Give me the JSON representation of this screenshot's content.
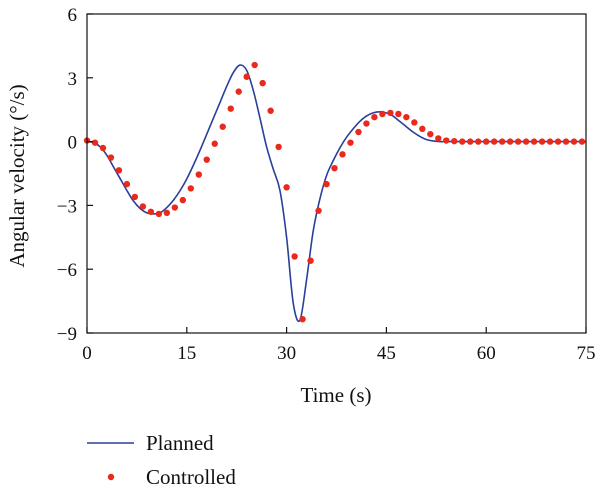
{
  "chart_data": {
    "type": "line",
    "xlabel": "Time (s)",
    "ylabel": "Angular velocity (°/s)",
    "xlim": [
      0,
      75
    ],
    "ylim": [
      -9,
      6
    ],
    "xticks": [
      "0",
      "15",
      "30",
      "45",
      "60",
      "75"
    ],
    "yticks": [
      "6",
      "3",
      "0",
      "−3",
      "−6",
      "−9"
    ],
    "grid": false,
    "legend_position": "bottom-left, below plot",
    "series": [
      {
        "name": "Planned",
        "style": "line",
        "color": "#2a3f9a",
        "x": [
          0,
          1,
          2,
          3,
          4,
          5,
          6,
          7,
          8,
          9,
          10,
          11,
          12,
          13,
          14,
          15,
          16,
          17,
          18,
          19,
          20,
          21,
          22,
          23,
          24,
          25,
          26,
          27,
          28,
          29,
          30,
          31,
          32,
          33,
          34,
          35,
          36,
          37,
          38,
          39,
          40,
          41,
          42,
          43,
          44,
          45,
          46,
          47,
          48,
          49,
          50,
          51,
          52,
          53,
          54,
          55,
          56,
          57,
          58,
          59,
          60,
          65,
          70,
          75
        ],
        "y": [
          0,
          -0.05,
          -0.25,
          -0.65,
          -1.2,
          -1.75,
          -2.3,
          -2.8,
          -3.15,
          -3.35,
          -3.4,
          -3.35,
          -3.1,
          -2.75,
          -2.3,
          -1.75,
          -1.1,
          -0.4,
          0.35,
          1.1,
          1.85,
          2.6,
          3.25,
          3.6,
          3.35,
          2.4,
          1.1,
          -0.25,
          -1.3,
          -2.3,
          -4.5,
          -7.6,
          -8.4,
          -6.5,
          -4.2,
          -2.7,
          -1.6,
          -0.9,
          -0.3,
          0.2,
          0.6,
          0.95,
          1.2,
          1.35,
          1.4,
          1.35,
          1.2,
          0.95,
          0.7,
          0.45,
          0.25,
          0.1,
          0.03,
          0,
          0,
          0,
          0,
          0,
          0,
          0,
          0,
          0,
          0,
          0
        ]
      },
      {
        "name": "Controlled",
        "style": "points",
        "color": "#e8291c",
        "x": [
          0,
          1.2,
          2.4,
          3.6,
          4.8,
          6,
          7.2,
          8.4,
          9.6,
          10.8,
          12,
          13.2,
          14.4,
          15.6,
          16.8,
          18,
          19.2,
          20.4,
          21.6,
          22.8,
          24,
          25.2,
          26.4,
          27.6,
          28.8,
          30,
          31.2,
          32.4,
          33.6,
          34.8,
          36,
          37.2,
          38.4,
          39.6,
          40.8,
          42,
          43.2,
          44.4,
          45.6,
          46.8,
          48,
          49.2,
          50.4,
          51.6,
          52.8,
          54,
          55.2,
          56.4,
          57.6,
          58.8,
          60,
          61.2,
          62.4,
          63.6,
          64.8,
          66,
          67.2,
          68.4,
          69.6,
          70.8,
          72,
          73.2,
          74.4
        ],
        "y": [
          0.05,
          -0.05,
          -0.3,
          -0.75,
          -1.35,
          -2.0,
          -2.6,
          -3.05,
          -3.3,
          -3.4,
          -3.35,
          -3.1,
          -2.75,
          -2.2,
          -1.55,
          -0.85,
          -0.1,
          0.7,
          1.55,
          2.35,
          3.05,
          3.6,
          2.75,
          1.45,
          -0.25,
          -2.15,
          -5.4,
          -8.35,
          -5.6,
          -3.25,
          -2.0,
          -1.25,
          -0.6,
          -0.05,
          0.45,
          0.85,
          1.15,
          1.3,
          1.35,
          1.3,
          1.15,
          0.9,
          0.6,
          0.35,
          0.15,
          0.05,
          0.02,
          0.0,
          0.0,
          0.0,
          0.0,
          0.0,
          0.0,
          0.0,
          0.0,
          0.0,
          0.0,
          0.0,
          0.0,
          0.0,
          0.0,
          0.0,
          0.0
        ]
      }
    ]
  }
}
